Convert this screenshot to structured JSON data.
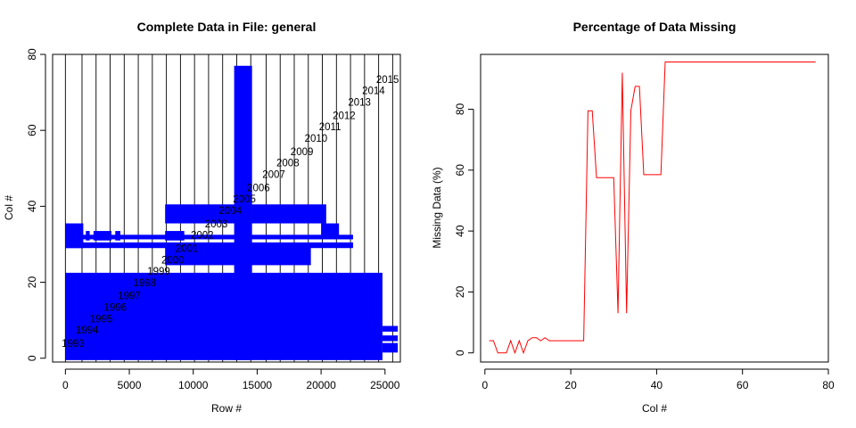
{
  "colors": {
    "fill": "#0000ff",
    "line": "#ff0000",
    "axis": "#000000",
    "grid": "#000000"
  },
  "chart_data": [
    {
      "type": "bar",
      "title": "Complete Data in File: general",
      "xlabel": "Row #",
      "ylabel": "Col #",
      "xlim": [
        -1000,
        26200
      ],
      "ylim": [
        -1,
        80
      ],
      "xticks": [
        "0",
        "5000",
        "10000",
        "15000",
        "20000",
        "25000"
      ],
      "xtick_values": [
        0,
        5000,
        10000,
        15000,
        20000,
        25000
      ],
      "yticks": [
        "0",
        "20",
        "40",
        "60",
        "80"
      ],
      "ytick_values": [
        0,
        20,
        40,
        60,
        80
      ],
      "year_dividers": [
        0,
        1300,
        2400,
        3500,
        4600,
        5700,
        6800,
        7900,
        9000,
        10100,
        11200,
        12300,
        13400,
        14500,
        15700,
        16800,
        17900,
        19000,
        20100,
        21200,
        22300,
        23400,
        24500,
        25600
      ],
      "year_labels": [
        {
          "label": "1993",
          "x": 600,
          "y": 3
        },
        {
          "label": "1994",
          "x": 1700,
          "y": 6.5
        },
        {
          "label": "1995",
          "x": 2800,
          "y": 9.5
        },
        {
          "label": "1996",
          "x": 3900,
          "y": 12.5
        },
        {
          "label": "1997",
          "x": 5000,
          "y": 15.5
        },
        {
          "label": "1998",
          "x": 6200,
          "y": 19
        },
        {
          "label": "1999",
          "x": 7300,
          "y": 22
        },
        {
          "label": "2000",
          "x": 8400,
          "y": 25
        },
        {
          "label": "2001",
          "x": 9500,
          "y": 28
        },
        {
          "label": "2002",
          "x": 10700,
          "y": 31.5
        },
        {
          "label": "2003",
          "x": 11800,
          "y": 34.5
        },
        {
          "label": "2004",
          "x": 12900,
          "y": 38
        },
        {
          "label": "2005",
          "x": 14000,
          "y": 41
        },
        {
          "label": "2006",
          "x": 15100,
          "y": 44
        },
        {
          "label": "2007",
          "x": 16300,
          "y": 47.5
        },
        {
          "label": "2008",
          "x": 17400,
          "y": 50.5
        },
        {
          "label": "2009",
          "x": 18500,
          "y": 53.5
        },
        {
          "label": "2010",
          "x": 19600,
          "y": 57
        },
        {
          "label": "2011",
          "x": 20700,
          "y": 60
        },
        {
          "label": "2012",
          "x": 21800,
          "y": 63
        },
        {
          "label": "2013",
          "x": 23000,
          "y": 66.5
        },
        {
          "label": "2014",
          "x": 24100,
          "y": 69.5
        },
        {
          "label": "2015",
          "x": 25200,
          "y": 72.5
        }
      ],
      "blocks": [
        {
          "x0": 0,
          "x1": 24800,
          "y0": -0.5,
          "y1": 22.5
        },
        {
          "x0": 7800,
          "x1": 19200,
          "y0": 24.5,
          "y1": 30
        },
        {
          "x0": 0,
          "x1": 22500,
          "y0": 29,
          "y1": 30.5
        },
        {
          "x0": 0,
          "x1": 22500,
          "y0": 31.3,
          "y1": 32.5
        },
        {
          "x0": 0,
          "x1": 1400,
          "y0": 29,
          "y1": 35.5
        },
        {
          "x0": 1600,
          "x1": 1900,
          "y0": 31,
          "y1": 33.5
        },
        {
          "x0": 2200,
          "x1": 3600,
          "y0": 31,
          "y1": 33.5
        },
        {
          "x0": 3900,
          "x1": 4300,
          "y0": 31,
          "y1": 33.5
        },
        {
          "x0": 7800,
          "x1": 9300,
          "y0": 31,
          "y1": 33.5
        },
        {
          "x0": 7800,
          "x1": 20400,
          "y0": 35.5,
          "y1": 40.5
        },
        {
          "x0": 20000,
          "x1": 21400,
          "y0": 32,
          "y1": 35.5
        },
        {
          "x0": 13200,
          "x1": 14600,
          "y0": -0.5,
          "y1": 77
        },
        {
          "x0": 24800,
          "x1": 26000,
          "y0": 7,
          "y1": 8.5
        },
        {
          "x0": 24800,
          "x1": 26000,
          "y0": 4.5,
          "y1": 6
        },
        {
          "x0": 24800,
          "x1": 26000,
          "y0": 1.5,
          "y1": 4
        }
      ]
    },
    {
      "type": "line",
      "title": "Percentage of Data Missing",
      "xlabel": "Col #",
      "ylabel": "Missing Data (%)",
      "xlim": [
        -1,
        80
      ],
      "ylim": [
        -3,
        98
      ],
      "xticks": [
        "0",
        "20",
        "40",
        "60",
        "80"
      ],
      "xtick_values": [
        0,
        20,
        40,
        60,
        80
      ],
      "yticks": [
        "0",
        "20",
        "40",
        "60",
        "80"
      ],
      "ytick_values": [
        0,
        20,
        40,
        60,
        80
      ],
      "series": [
        {
          "x": [
            1,
            2,
            3,
            4,
            5,
            6,
            7,
            8,
            9,
            10,
            11,
            12,
            13,
            14,
            15,
            16,
            17,
            18,
            19,
            20,
            21,
            22,
            23,
            24,
            25,
            26,
            27,
            28,
            29,
            30,
            31,
            32,
            33,
            34,
            35,
            36,
            37,
            38,
            39,
            40,
            41,
            42,
            43,
            44,
            45,
            46,
            47,
            48,
            50,
            55,
            60,
            65,
            70,
            75,
            77
          ],
          "y": [
            4,
            4,
            0,
            0,
            0,
            4,
            0,
            4,
            0,
            4,
            5,
            5,
            4,
            5,
            4,
            4,
            4,
            4,
            4,
            4,
            4,
            4,
            4,
            79.5,
            79.5,
            57.5,
            57.5,
            57.5,
            57.5,
            57.5,
            13,
            92,
            13,
            79.5,
            87.5,
            87.5,
            58.5,
            58.5,
            58.5,
            58.5,
            58.5,
            95.5,
            95.5,
            95.5,
            95.5,
            95.5,
            95.5,
            95.5,
            95.5,
            95.5,
            95.5,
            95.5,
            95.5,
            95.5,
            95.5
          ]
        }
      ]
    }
  ]
}
